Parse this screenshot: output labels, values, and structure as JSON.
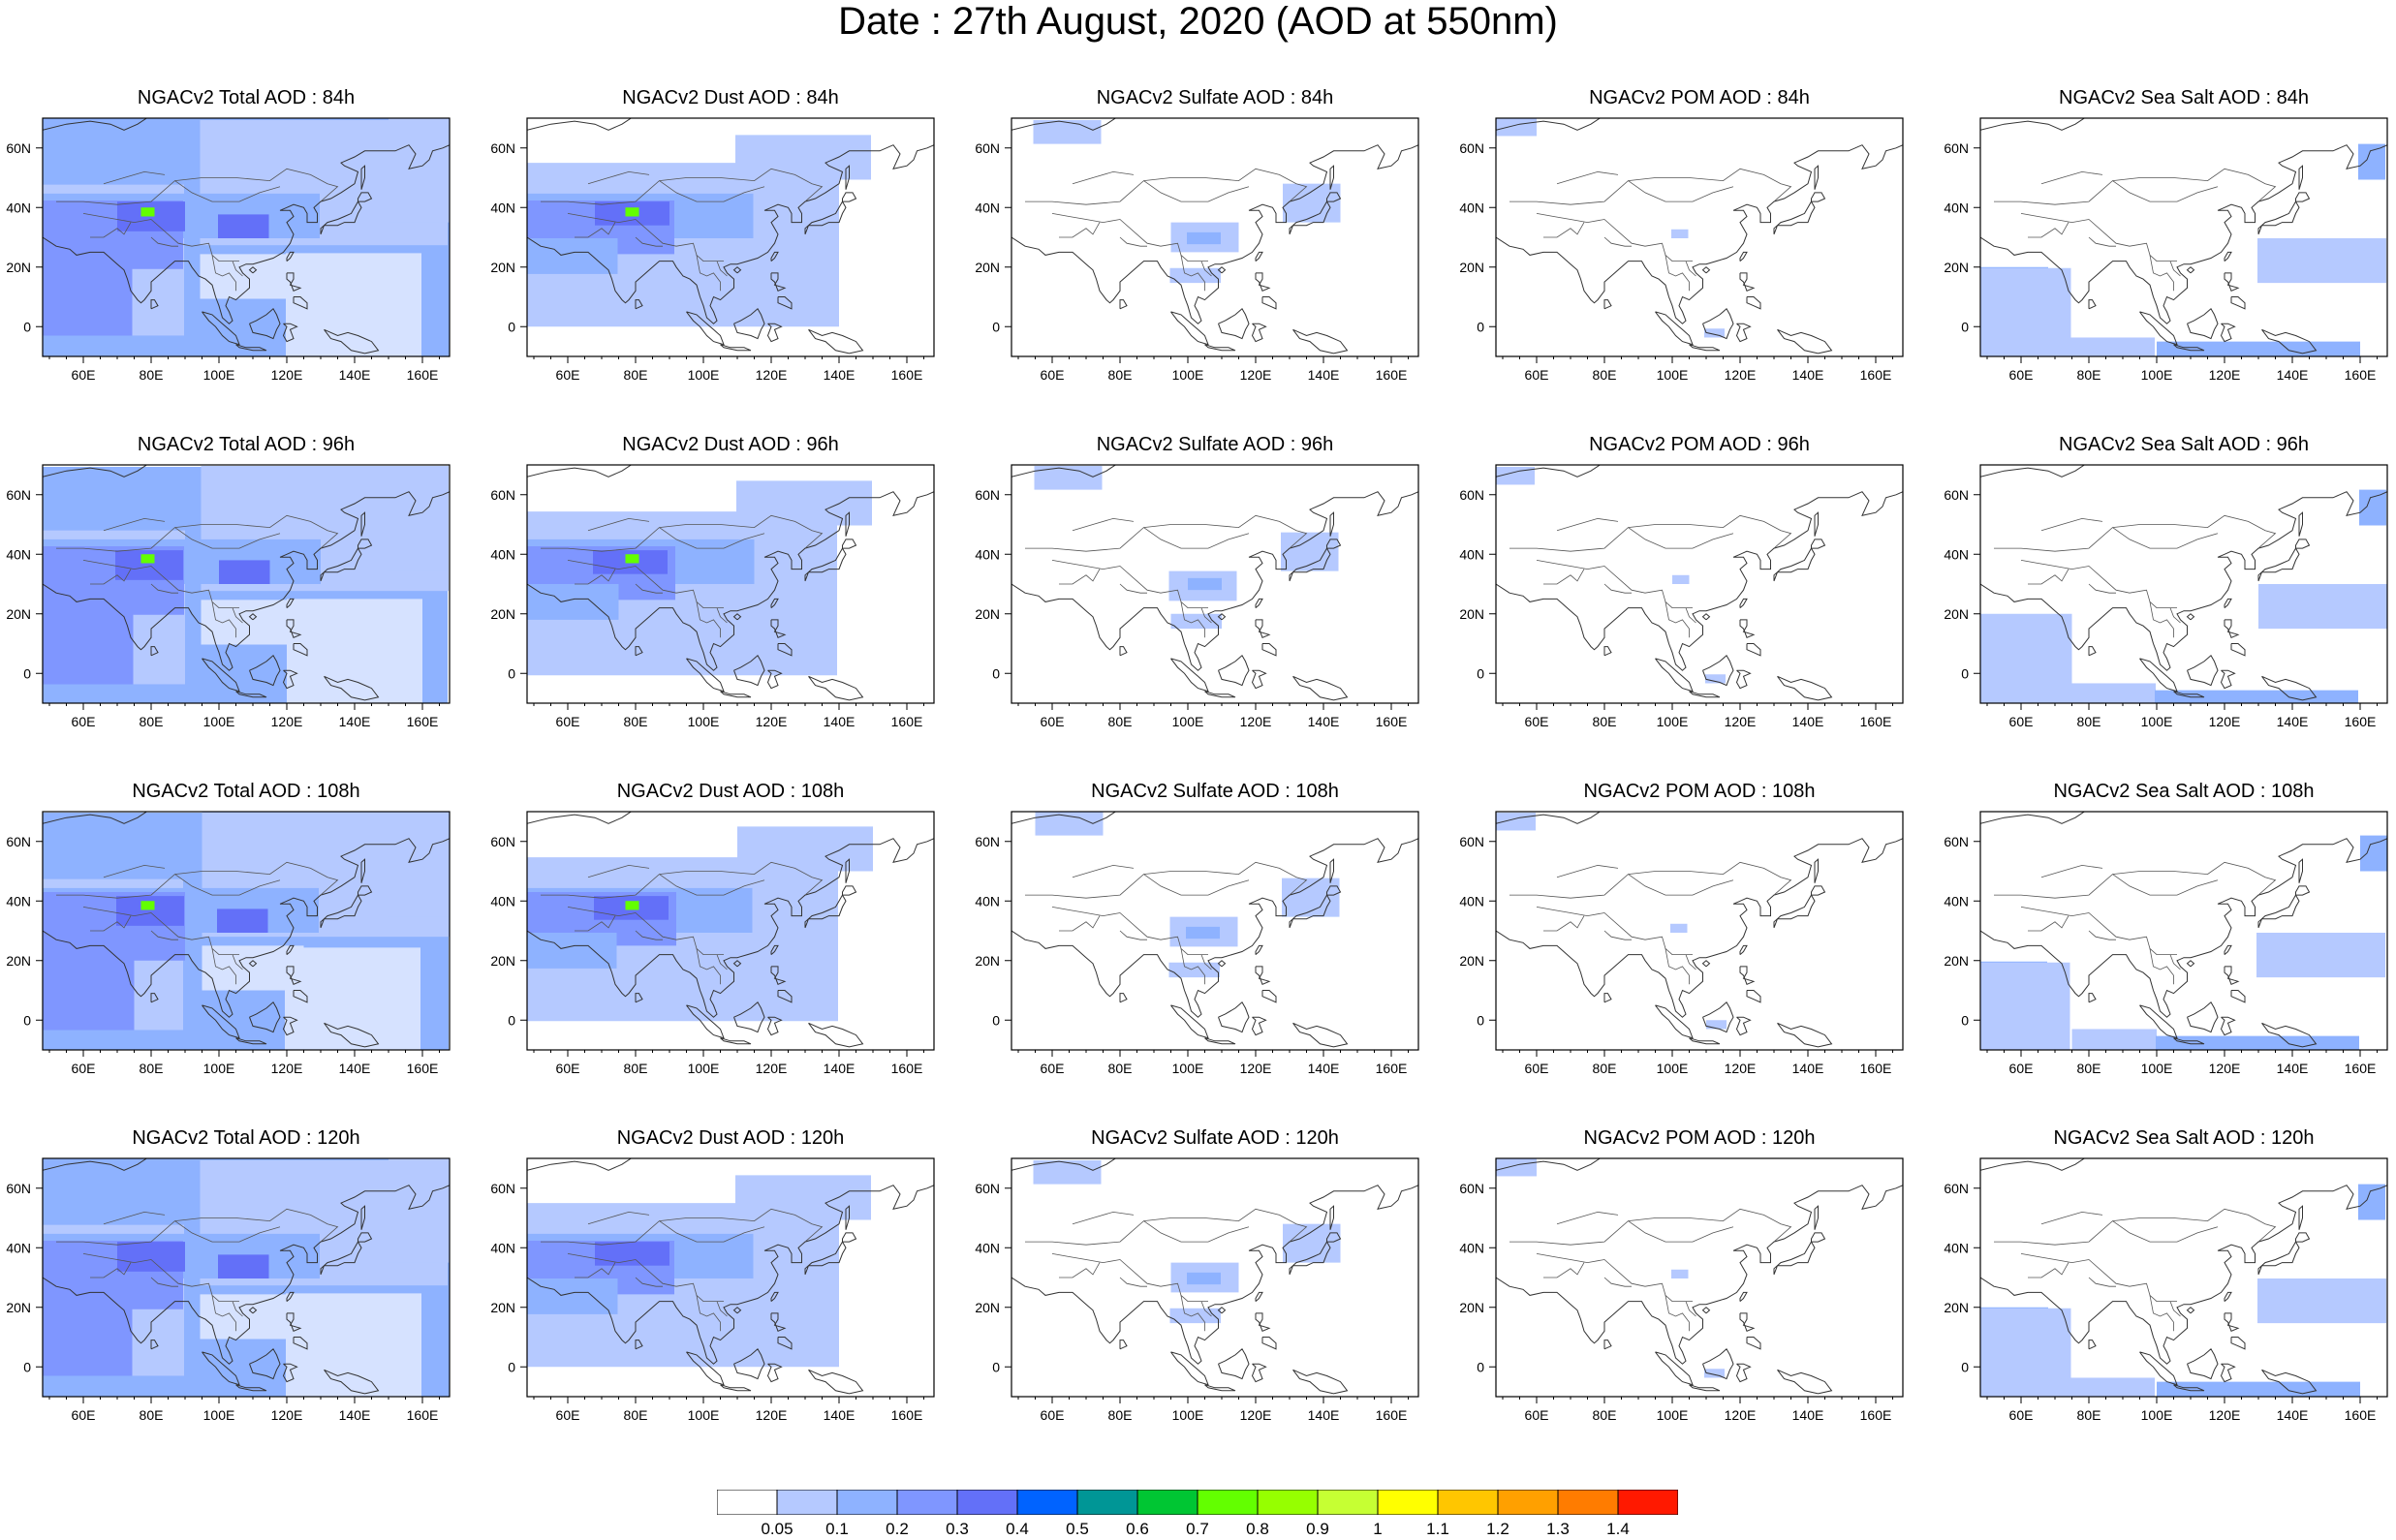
{
  "title": "Date : 27th August, 2020 (AOD at 550nm)",
  "map": {
    "lon_range": [
      48,
      168
    ],
    "lat_range": [
      -10,
      70
    ],
    "lon_ticks": [
      "60E",
      "80E",
      "100E",
      "120E",
      "140E",
      "160E"
    ],
    "lat_ticks": [
      "60N",
      "40N",
      "20N",
      "0"
    ]
  },
  "panels": [
    [
      "NGACv2 Total AOD : 84h",
      "NGACv2 Dust AOD : 84h",
      "NGACv2 Sulfate AOD : 84h",
      "NGACv2 POM AOD : 84h",
      "NGACv2 Sea Salt AOD : 84h"
    ],
    [
      "NGACv2 Total AOD : 96h",
      "NGACv2 Dust AOD : 96h",
      "NGACv2 Sulfate AOD : 96h",
      "NGACv2 POM AOD : 96h",
      "NGACv2 Sea Salt AOD : 96h"
    ],
    [
      "NGACv2 Total AOD : 108h",
      "NGACv2 Dust AOD : 108h",
      "NGACv2 Sulfate AOD : 108h",
      "NGACv2 POM AOD : 108h",
      "NGACv2 Sea Salt AOD : 108h"
    ],
    [
      "NGACv2 Total AOD : 120h",
      "NGACv2 Dust AOD : 120h",
      "NGACv2 Sulfate AOD : 120h",
      "NGACv2 POM AOD : 120h",
      "NGACv2 Sea Salt  AOD : 120h"
    ]
  ],
  "colorbar": {
    "labels": [
      "0.05",
      "0.1",
      "0.2",
      "0.3",
      "0.4",
      "0.5",
      "0.6",
      "0.7",
      "0.8",
      "0.9",
      "1",
      "1.1",
      "1.2",
      "1.3",
      "1.4"
    ],
    "colors": [
      "#ffffff",
      "#d6e2ff",
      "#b5c9ff",
      "#8eb2ff",
      "#7f96ff",
      "#6370f8",
      "#0063ff",
      "#009696",
      "#00c633",
      "#63ff00",
      "#96ff00",
      "#c6ff33",
      "#ffff00",
      "#ffc600",
      "#ffa000",
      "#ff7c00",
      "#ff1900"
    ]
  }
}
